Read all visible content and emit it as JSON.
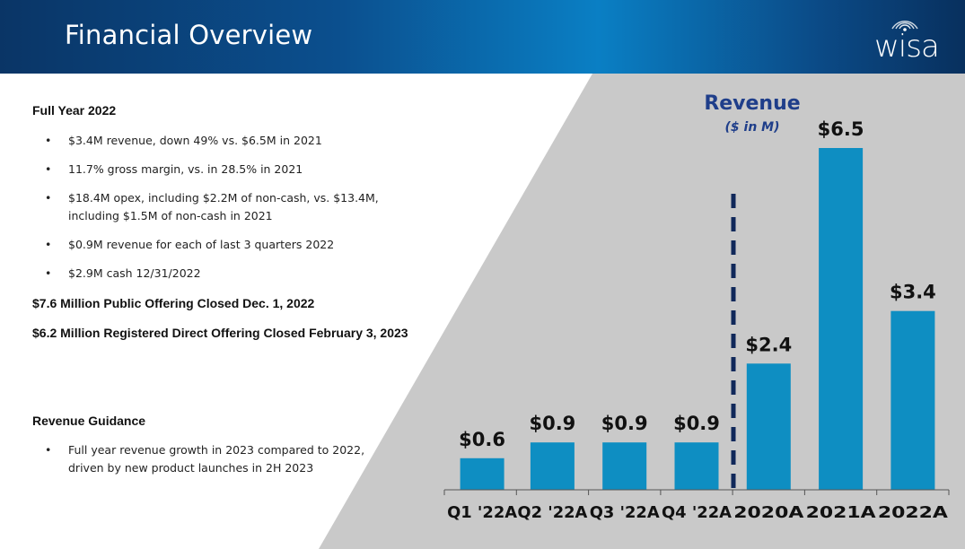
{
  "header": {
    "title": "Financial Overview",
    "logo_text": "wisa",
    "logo_icon": "wifi-waves-icon"
  },
  "colors": {
    "header_dark": "#0a3566",
    "header_light": "#0a7fc4",
    "bar": "#0e8ec2",
    "panel": "#c9c9c9",
    "divider": "#10285a",
    "revenue_title": "#1f3e8a"
  },
  "left": {
    "full_year_heading": "Full Year 2022",
    "full_year_bullets": [
      "$3.4M revenue, down 49% vs. $6.5M in 2021",
      "11.7% gross margin, vs. in 28.5% in 2021",
      "$18.4M opex, including $2.2M of non-cash, vs. $13.4M,",
      "including $1.5M of non-cash in 2021",
      "$0.9M revenue for each of last 3 quarters 2022",
      "$2.9M cash 12/31/2022"
    ],
    "offering_1": "$7.6 Million Public Offering Closed Dec. 1, 2022",
    "offering_2": "$6.2 Million Registered Direct Offering Closed February 3, 2023",
    "guidance_heading": "Revenue Guidance",
    "guidance_bullets": [
      "Full year revenue growth in 2023 compared to 2022,",
      "driven by new product launches in 2H 2023"
    ]
  },
  "chart_data": {
    "type": "bar",
    "title": "Revenue",
    "subtitle": "($ in M)",
    "categories": [
      "Q1 '22A",
      "Q2 '22A",
      "Q3 '22A",
      "Q4 '22A",
      "2020A",
      "2021A",
      "2022A"
    ],
    "values": [
      0.6,
      0.9,
      0.9,
      0.9,
      2.4,
      6.5,
      3.4
    ],
    "data_labels": [
      "$0.6",
      "$0.9",
      "$0.9",
      "$0.9",
      "$2.4",
      "$6.5",
      "$3.4"
    ],
    "ylim": [
      0,
      6.5
    ],
    "grid": false,
    "legend": "none",
    "divider_after_category": "Q4 '22A"
  }
}
